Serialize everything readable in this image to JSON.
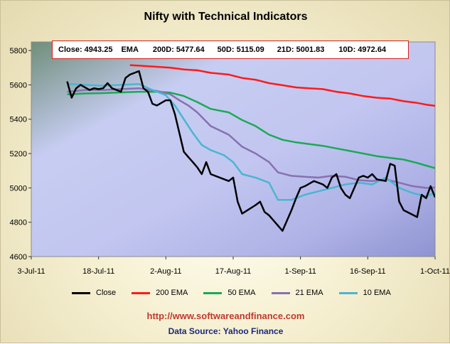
{
  "chart_data": {
    "type": "line",
    "title": "Nifty with Technical Indicators",
    "summary": {
      "close": "Close: 4943.25",
      "ema_label": "EMA",
      "ema200": "200D: 5477.64",
      "ema50": "50D: 5115.09",
      "ema21": "21D: 5001.83",
      "ema10": "10D: 4972.64"
    },
    "x_ticks": [
      "3-Jul-11",
      "18-Jul-11",
      "2-Aug-11",
      "17-Aug-11",
      "1-Sep-11",
      "16-Sep-11",
      "1-Oct-11"
    ],
    "x_tick_values": [
      0,
      15,
      30,
      45,
      60,
      75,
      90
    ],
    "y_ticks": [
      "4600",
      "4800",
      "5000",
      "5200",
      "5400",
      "5600",
      "5800"
    ],
    "ylim": [
      4600,
      5850
    ],
    "xlim": [
      0,
      90
    ],
    "x_unit_note": "x values are days since 3-Jul-11",
    "series": [
      {
        "name": "Close",
        "color": "#000000",
        "x": [
          8,
          9,
          10,
          11,
          13,
          14,
          15,
          16,
          17,
          18,
          20,
          21,
          22,
          23,
          24,
          25,
          26,
          27,
          28,
          30,
          31,
          32,
          33,
          34,
          35,
          36,
          37,
          38,
          39,
          40,
          44,
          45,
          46,
          47,
          50,
          51,
          52,
          53,
          56,
          58,
          59,
          60,
          61,
          63,
          65,
          66,
          67,
          68,
          69,
          70,
          71,
          73,
          74,
          75,
          76,
          77,
          79,
          80,
          81,
          82,
          83,
          86,
          87,
          88,
          89,
          90
        ],
        "y": [
          5620,
          5525,
          5580,
          5600,
          5570,
          5580,
          5575,
          5580,
          5610,
          5580,
          5560,
          5640,
          5660,
          5670,
          5680,
          5580,
          5560,
          5490,
          5480,
          5510,
          5510,
          5430,
          5320,
          5210,
          5180,
          5150,
          5120,
          5080,
          5150,
          5080,
          5040,
          5060,
          4920,
          4850,
          4900,
          4920,
          4860,
          4840,
          4750,
          4870,
          4940,
          5000,
          5010,
          5040,
          5020,
          5000,
          5060,
          5080,
          5000,
          4960,
          4940,
          5060,
          5070,
          5060,
          5080,
          5050,
          5040,
          5140,
          5130,
          4920,
          4870,
          4830,
          4960,
          4940,
          5010,
          4945
        ]
      },
      {
        "name": "200 EMA",
        "color": "#ff1a1a",
        "x": [
          22,
          25,
          28,
          31,
          34,
          37,
          40,
          44,
          47,
          50,
          53,
          56,
          59,
          62,
          65,
          68,
          71,
          74,
          77,
          80,
          83,
          86,
          88,
          90
        ],
        "y": [
          5715,
          5710,
          5705,
          5700,
          5690,
          5685,
          5670,
          5660,
          5640,
          5630,
          5610,
          5598,
          5585,
          5580,
          5575,
          5560,
          5550,
          5535,
          5525,
          5520,
          5505,
          5495,
          5485,
          5478
        ]
      },
      {
        "name": "50 EMA",
        "color": "#1aaa55",
        "x": [
          8,
          12,
          16,
          20,
          24,
          28,
          31,
          34,
          37,
          40,
          44,
          47,
          50,
          53,
          56,
          59,
          62,
          65,
          68,
          71,
          74,
          77,
          80,
          83,
          86,
          88,
          90
        ],
        "y": [
          5545,
          5550,
          5552,
          5556,
          5560,
          5560,
          5555,
          5535,
          5500,
          5460,
          5440,
          5395,
          5360,
          5310,
          5280,
          5265,
          5255,
          5245,
          5230,
          5215,
          5200,
          5185,
          5175,
          5165,
          5145,
          5130,
          5115
        ]
      },
      {
        "name": "21 EMA",
        "color": "#8870b0",
        "x": [
          8,
          12,
          16,
          20,
          24,
          28,
          31,
          33,
          35,
          37,
          40,
          44,
          47,
          50,
          53,
          55,
          58,
          61,
          64,
          67,
          70,
          73,
          76,
          79,
          82,
          85,
          88,
          90
        ],
        "y": [
          5560,
          5570,
          5570,
          5575,
          5580,
          5565,
          5545,
          5510,
          5480,
          5440,
          5360,
          5310,
          5240,
          5200,
          5150,
          5090,
          5070,
          5065,
          5060,
          5070,
          5065,
          5045,
          5040,
          5050,
          5030,
          5010,
          5000,
          5002
        ]
      },
      {
        "name": "10 EMA",
        "color": "#49b6d0",
        "x": [
          8,
          12,
          16,
          20,
          24,
          27,
          30,
          32,
          34,
          36,
          38,
          40,
          43,
          45,
          47,
          50,
          53,
          55,
          58,
          61,
          64,
          67,
          70,
          73,
          76,
          79,
          82,
          85,
          88,
          90
        ],
        "y": [
          5605,
          5600,
          5595,
          5600,
          5605,
          5570,
          5540,
          5480,
          5400,
          5320,
          5250,
          5220,
          5190,
          5150,
          5080,
          5060,
          5030,
          4930,
          4930,
          4960,
          4980,
          5000,
          5020,
          5030,
          5020,
          5060,
          5000,
          4970,
          4950,
          4973
        ]
      }
    ],
    "legend_position": "bottom",
    "grid": false
  },
  "footer": {
    "url": "http://www.softwareandfinance.com",
    "source": "Data Source: Yahoo Finance"
  }
}
